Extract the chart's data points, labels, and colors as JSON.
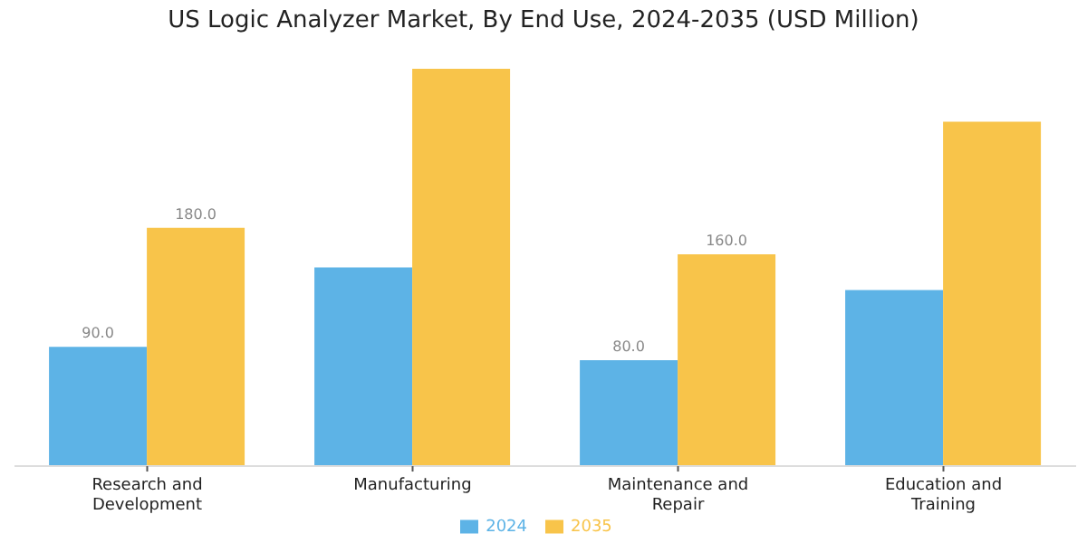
{
  "chart_data": {
    "type": "bar",
    "title": "US Logic Analyzer Market, By End Use, 2024-2035 (USD Million)",
    "categories": [
      "Research and Development",
      "Manufacturing",
      "Maintenance and Repair",
      "Education and Training"
    ],
    "series": [
      {
        "name": "2024",
        "color": "#5db3e6",
        "values": [
          90,
          150,
          80,
          133
        ],
        "value_labels": [
          "90.0",
          null,
          "80.0",
          null
        ]
      },
      {
        "name": "2035",
        "color": "#f8c44a",
        "values": [
          180,
          300,
          160,
          260
        ],
        "value_labels": [
          "180.0",
          null,
          "160.0",
          null
        ]
      }
    ],
    "legend": "bottom",
    "grid": false
  }
}
